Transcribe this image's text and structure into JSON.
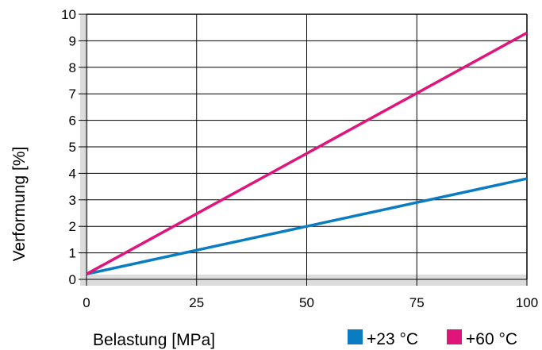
{
  "chart_data": {
    "type": "line",
    "xlabel": "Belastung [MPa]",
    "ylabel": "Verformung [%]",
    "xlim": [
      0,
      100
    ],
    "ylim": [
      0,
      10
    ],
    "x_ticks": [
      "0",
      "25",
      "50",
      "75",
      "100"
    ],
    "y_ticks": [
      "0",
      "1",
      "2",
      "3",
      "4",
      "5",
      "6",
      "7",
      "8",
      "9",
      "10"
    ],
    "grid": true,
    "legend_position": "bottom-right",
    "series": [
      {
        "name": "+23 °C",
        "color": "#0a7cc1",
        "x": [
          0,
          100
        ],
        "y": [
          0.2,
          3.8
        ]
      },
      {
        "name": "+60 °C",
        "color": "#e0157c",
        "x": [
          0,
          100
        ],
        "y": [
          0.2,
          9.3
        ]
      }
    ],
    "axis_band_color": "#dcdcdc"
  }
}
